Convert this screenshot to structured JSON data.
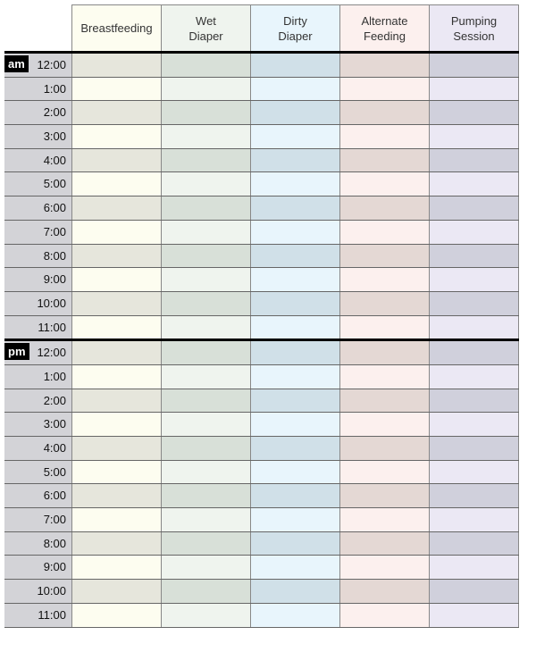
{
  "columns": [
    {
      "label": "Breastfeeding",
      "light": "#fdfdf0",
      "dark": "#e6e6dc"
    },
    {
      "label": "Wet\nDiaper",
      "light": "#eff4ee",
      "dark": "#d8e0d8"
    },
    {
      "label": "Dirty\nDiaper",
      "light": "#e8f5fc",
      "dark": "#d0e0e8"
    },
    {
      "label": "Alternate\nFeeding",
      "light": "#fcf0ee",
      "dark": "#e4d8d4"
    },
    {
      "label": "Pumping\nSession",
      "light": "#ebe8f4",
      "dark": "#d0d0dc"
    }
  ],
  "periods": [
    {
      "label": "am",
      "hours": [
        "12:00",
        "1:00",
        "2:00",
        "3:00",
        "4:00",
        "5:00",
        "6:00",
        "7:00",
        "8:00",
        "9:00",
        "10:00",
        "11:00"
      ]
    },
    {
      "label": "pm",
      "hours": [
        "12:00",
        "1:00",
        "2:00",
        "3:00",
        "4:00",
        "5:00",
        "6:00",
        "7:00",
        "8:00",
        "9:00",
        "10:00",
        "11:00"
      ]
    }
  ]
}
